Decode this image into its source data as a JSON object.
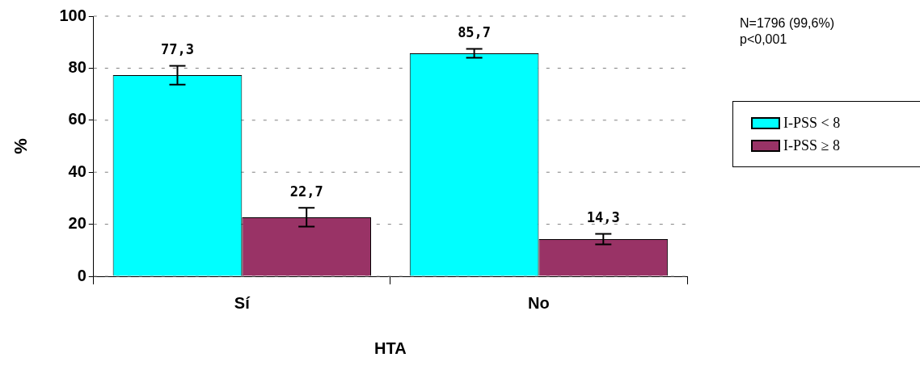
{
  "chart_data": {
    "type": "bar",
    "xlabel": "HTA",
    "ylabel": "%",
    "categories": [
      "Sí",
      "No"
    ],
    "series": [
      {
        "name": "I-PSS < 8",
        "color": "#00ffff",
        "values": [
          77.3,
          85.7
        ],
        "errors": [
          3.6,
          1.7
        ],
        "value_labels": [
          "77,3",
          "85,7"
        ]
      },
      {
        "name": "I-PSS ≥ 8",
        "color": "#993366",
        "values": [
          22.7,
          14.3
        ],
        "errors": [
          3.6,
          2.0
        ],
        "value_labels": [
          "22,7",
          "14,3"
        ]
      }
    ],
    "ylim": [
      0,
      100
    ],
    "yticks": [
      0,
      20,
      40,
      60,
      80,
      100
    ],
    "grid": "y",
    "legend": "right",
    "annotations": [
      "N=1796 (99,6%)",
      "p<0,001"
    ]
  }
}
